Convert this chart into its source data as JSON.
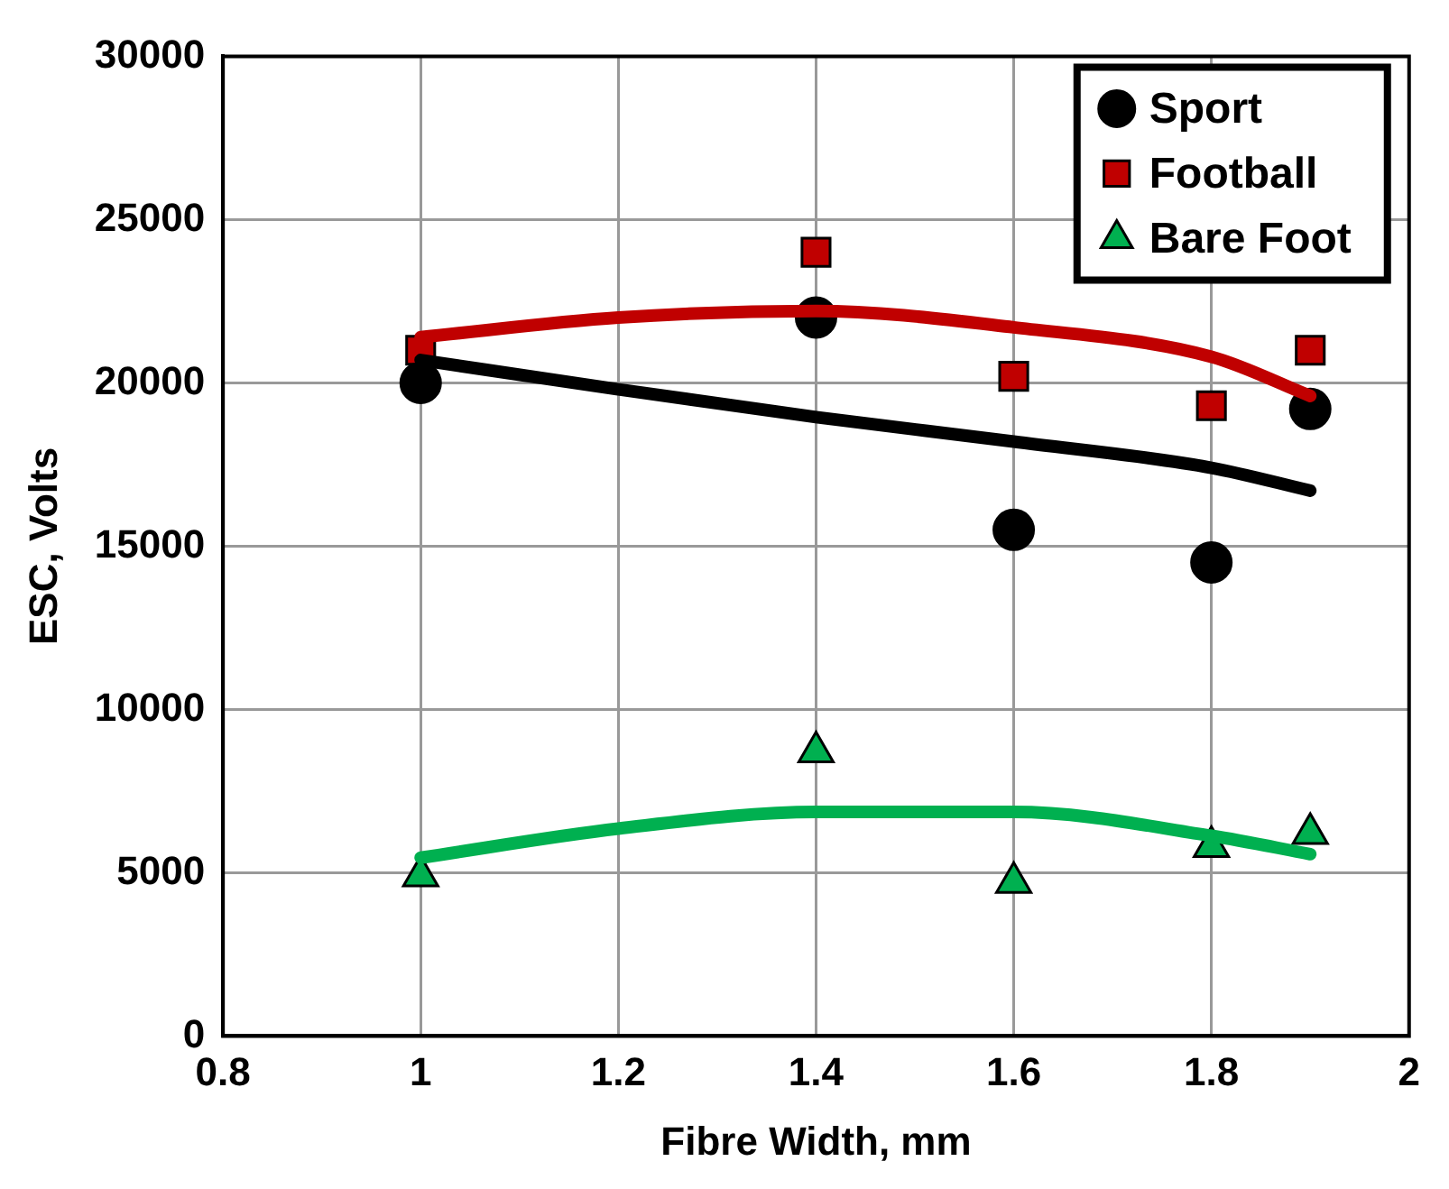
{
  "chart_data": {
    "type": "scatter",
    "xlabel": "Fibre Width, mm",
    "ylabel": "ESC, Volts",
    "xlim": [
      0.8,
      2
    ],
    "xticks": [
      0.8,
      1,
      1.2,
      1.4,
      1.6,
      1.8,
      2
    ],
    "ylim": [
      0,
      30000
    ],
    "yticks": [
      0,
      5000,
      10000,
      15000,
      20000,
      25000,
      30000
    ],
    "grid": true,
    "legend": "top right",
    "series": [
      {
        "name": "Sport",
        "type": "scatter",
        "marker": "circle",
        "color": "#000000",
        "x": [
          1,
          1.4,
          1.6,
          1.8,
          1.9
        ],
        "values": [
          20000,
          22000,
          15500,
          14500,
          19200
        ]
      },
      {
        "name": "Football",
        "type": "scatter",
        "marker": "square",
        "color": "#c00000",
        "x": [
          1,
          1.4,
          1.6,
          1.8,
          1.9
        ],
        "values": [
          21000,
          24000,
          20200,
          19300,
          21000
        ]
      },
      {
        "name": "Bare Foot",
        "type": "scatter",
        "marker": "triangle",
        "color": "#00b050",
        "x": [
          1,
          1.4,
          1.6,
          1.8,
          1.9
        ],
        "values": [
          4900,
          8700,
          4700,
          5800,
          6200
        ]
      },
      {
        "type": "line",
        "marker": "none",
        "color": "#000000",
        "x": [
          1,
          1.2,
          1.4,
          1.6,
          1.8,
          1.9
        ],
        "values": [
          20700,
          19800,
          18950,
          18200,
          17400,
          16700
        ]
      },
      {
        "type": "line",
        "marker": "none",
        "color": "#c00000",
        "x": [
          1,
          1.2,
          1.4,
          1.6,
          1.8,
          1.9
        ],
        "values": [
          21400,
          22000,
          22200,
          21700,
          20800,
          19600
        ]
      },
      {
        "type": "line",
        "marker": "none",
        "color": "#00b050",
        "x": [
          1,
          1.2,
          1.4,
          1.6,
          1.8,
          1.9
        ],
        "values": [
          5460,
          6350,
          6860,
          6860,
          6130,
          5570
        ]
      }
    ]
  }
}
